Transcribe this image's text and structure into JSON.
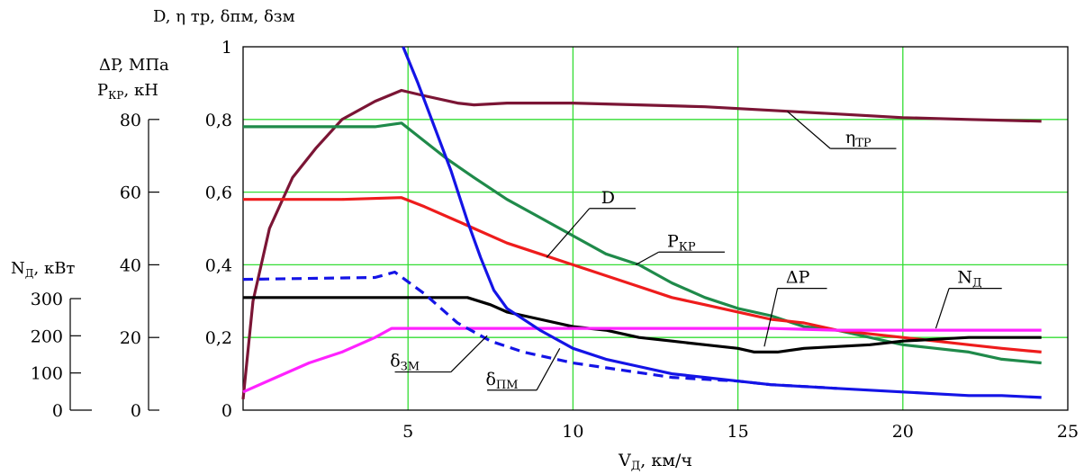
{
  "chart_data": {
    "type": "line",
    "xlabel": {
      "main": "V",
      "sub": "Д",
      "rest": ", км/ч"
    },
    "xlim": [
      0,
      25
    ],
    "x_ticks": [
      "5",
      "10",
      "15",
      "20",
      "25"
    ],
    "grid": true,
    "axes": {
      "main": {
        "label": "D, η тр, δпм, δзм",
        "range": [
          0,
          1
        ],
        "ticks": [
          "0",
          "0,2",
          "0,4",
          "0,6",
          "0,8",
          "1"
        ]
      },
      "force": {
        "label_line1": "ΔP, МПа",
        "label_line2_main": "P",
        "label_line2_sub": "КР",
        "label_line2_rest": ", кН",
        "range": [
          0,
          100
        ],
        "ticks": [
          "0",
          "20",
          "40",
          "60",
          "80"
        ]
      },
      "power": {
        "label_main": "N",
        "label_sub": "Д",
        "label_rest": ", кВт",
        "range": [
          0,
          300
        ],
        "ticks": [
          "0",
          "100",
          "200",
          "300"
        ]
      }
    },
    "series": [
      {
        "key": "eta",
        "color": "#7b1535",
        "dashed": false,
        "points": [
          [
            0,
            0.03
          ],
          [
            0.3,
            0.3
          ],
          [
            0.8,
            0.5
          ],
          [
            1.5,
            0.64
          ],
          [
            2.2,
            0.72
          ],
          [
            3,
            0.8
          ],
          [
            4,
            0.85
          ],
          [
            4.8,
            0.88
          ],
          [
            5.5,
            0.865
          ],
          [
            6.5,
            0.845
          ],
          [
            7,
            0.84
          ],
          [
            8,
            0.845
          ],
          [
            10,
            0.845
          ],
          [
            12,
            0.84
          ],
          [
            14,
            0.835
          ],
          [
            16,
            0.825
          ],
          [
            18,
            0.815
          ],
          [
            20,
            0.805
          ],
          [
            22,
            0.8
          ],
          [
            24.2,
            0.795
          ]
        ]
      },
      {
        "key": "pkr",
        "color": "#1f8a4a",
        "dashed": false,
        "points": [
          [
            0,
            0.78
          ],
          [
            4,
            0.78
          ],
          [
            4.8,
            0.79
          ],
          [
            5.5,
            0.74
          ],
          [
            6.2,
            0.69
          ],
          [
            7,
            0.64
          ],
          [
            8,
            0.58
          ],
          [
            9,
            0.53
          ],
          [
            10,
            0.48
          ],
          [
            11,
            0.43
          ],
          [
            12,
            0.4
          ],
          [
            13,
            0.35
          ],
          [
            14,
            0.31
          ],
          [
            15,
            0.28
          ],
          [
            16,
            0.26
          ],
          [
            17,
            0.23
          ],
          [
            18,
            0.22
          ],
          [
            19,
            0.2
          ],
          [
            20,
            0.18
          ],
          [
            21,
            0.17
          ],
          [
            22,
            0.16
          ],
          [
            23,
            0.14
          ],
          [
            24.2,
            0.13
          ]
        ]
      },
      {
        "key": "d",
        "color": "#ee1c1c",
        "dashed": false,
        "points": [
          [
            0,
            0.58
          ],
          [
            3,
            0.58
          ],
          [
            4.8,
            0.585
          ],
          [
            5.5,
            0.56
          ],
          [
            6.5,
            0.52
          ],
          [
            7,
            0.5
          ],
          [
            8,
            0.46
          ],
          [
            9,
            0.43
          ],
          [
            10,
            0.4
          ],
          [
            11,
            0.37
          ],
          [
            12,
            0.34
          ],
          [
            13,
            0.31
          ],
          [
            14,
            0.29
          ],
          [
            15,
            0.27
          ],
          [
            16,
            0.25
          ],
          [
            17,
            0.24
          ],
          [
            18,
            0.22
          ],
          [
            19,
            0.21
          ],
          [
            20,
            0.2
          ],
          [
            21,
            0.19
          ],
          [
            22,
            0.18
          ],
          [
            23,
            0.17
          ],
          [
            24.2,
            0.16
          ]
        ]
      },
      {
        "key": "dp",
        "color": "#000000",
        "dashed": false,
        "points": [
          [
            0,
            0.31
          ],
          [
            6.8,
            0.31
          ],
          [
            7.5,
            0.29
          ],
          [
            8,
            0.27
          ],
          [
            9,
            0.25
          ],
          [
            10,
            0.23
          ],
          [
            11,
            0.22
          ],
          [
            12,
            0.2
          ],
          [
            13,
            0.19
          ],
          [
            14,
            0.18
          ],
          [
            15,
            0.17
          ],
          [
            15.5,
            0.16
          ],
          [
            16.2,
            0.16
          ],
          [
            17,
            0.17
          ],
          [
            18,
            0.175
          ],
          [
            19,
            0.18
          ],
          [
            20,
            0.19
          ],
          [
            21,
            0.195
          ],
          [
            22,
            0.2
          ],
          [
            23,
            0.2
          ],
          [
            24.2,
            0.2
          ]
        ]
      },
      {
        "key": "nd",
        "color": "#ff22ff",
        "dashed": false,
        "points": [
          [
            0,
            0.05
          ],
          [
            1,
            0.09
          ],
          [
            2,
            0.13
          ],
          [
            3,
            0.16
          ],
          [
            4,
            0.2
          ],
          [
            4.5,
            0.225
          ],
          [
            6,
            0.225
          ],
          [
            8,
            0.225
          ],
          [
            10,
            0.225
          ],
          [
            12,
            0.225
          ],
          [
            14,
            0.225
          ],
          [
            16,
            0.225
          ],
          [
            18,
            0.22
          ],
          [
            20,
            0.22
          ],
          [
            22,
            0.22
          ],
          [
            24.2,
            0.22
          ]
        ]
      },
      {
        "key": "dzm",
        "color": "#1414e6",
        "dashed": true,
        "points": [
          [
            0,
            0.36
          ],
          [
            4,
            0.365
          ],
          [
            4.6,
            0.38
          ],
          [
            5.5,
            0.32
          ],
          [
            6.5,
            0.24
          ],
          [
            7.5,
            0.19
          ],
          [
            8.5,
            0.16
          ],
          [
            10,
            0.13
          ],
          [
            11.5,
            0.11
          ],
          [
            13,
            0.09
          ],
          [
            14,
            0.085
          ],
          [
            15,
            0.08
          ],
          [
            16,
            0.07
          ],
          [
            17,
            0.065
          ],
          [
            18,
            0.06
          ]
        ]
      },
      {
        "key": "dpm",
        "color": "#1414e6",
        "dashed": false,
        "points": [
          [
            4.85,
            1.0
          ],
          [
            5.3,
            0.9
          ],
          [
            5.8,
            0.78
          ],
          [
            6.3,
            0.66
          ],
          [
            6.8,
            0.52
          ],
          [
            7.2,
            0.42
          ],
          [
            7.6,
            0.33
          ],
          [
            8,
            0.28
          ],
          [
            9,
            0.22
          ],
          [
            10,
            0.17
          ],
          [
            11,
            0.14
          ],
          [
            12,
            0.12
          ],
          [
            13,
            0.1
          ],
          [
            14,
            0.09
          ],
          [
            15,
            0.08
          ],
          [
            16,
            0.07
          ],
          [
            17,
            0.065
          ],
          [
            18,
            0.06
          ],
          [
            19,
            0.055
          ],
          [
            20,
            0.05
          ],
          [
            21,
            0.045
          ],
          [
            22,
            0.04
          ],
          [
            23,
            0.04
          ],
          [
            24.2,
            0.035
          ]
        ]
      }
    ],
    "annotations": [
      {
        "key": "eta",
        "main": "η",
        "sub": "ТР",
        "at": [
          18.2,
          0.72
        ],
        "from": [
          16.5,
          0.822
        ],
        "to": [
          17.8,
          0.72
        ],
        "under_to": [
          19.8,
          0.72
        ]
      },
      {
        "key": "d",
        "main": "D",
        "sub": "",
        "at": [
          10.8,
          0.555
        ],
        "from": [
          9.2,
          0.42
        ],
        "to": [
          10.5,
          0.555
        ],
        "under_to": [
          11.9,
          0.555
        ]
      },
      {
        "key": "pkr",
        "main": "P",
        "sub": "КР",
        "at": [
          12.8,
          0.435
        ],
        "from": [
          11.9,
          0.4
        ],
        "to": [
          12.6,
          0.435
        ],
        "under_to": [
          14.6,
          0.435
        ]
      },
      {
        "key": "dp",
        "main": "ΔP",
        "sub": "",
        "at": [
          16.4,
          0.335
        ],
        "from": [
          15.8,
          0.175
        ],
        "to": [
          16.2,
          0.335
        ],
        "under_to": [
          17.7,
          0.335
        ]
      },
      {
        "key": "nd",
        "main": "N",
        "sub": "Д",
        "at": [
          21.6,
          0.335
        ],
        "from": [
          21.0,
          0.225
        ],
        "to": [
          21.4,
          0.335
        ],
        "under_to": [
          23.0,
          0.335
        ]
      },
      {
        "key": "dzm",
        "main": "δ",
        "sub": "ЗМ",
        "at": [
          4.4,
          0.105
        ],
        "from": [
          7.4,
          0.205
        ],
        "to": [
          6.3,
          0.105
        ],
        "under_to": [
          4.6,
          0.105
        ]
      },
      {
        "key": "dpm",
        "main": "δ",
        "sub": "ПМ",
        "at": [
          7.3,
          0.055
        ],
        "from": [
          9.6,
          0.17
        ],
        "to": [
          8.9,
          0.055
        ],
        "under_to": [
          7.4,
          0.055
        ]
      }
    ]
  }
}
